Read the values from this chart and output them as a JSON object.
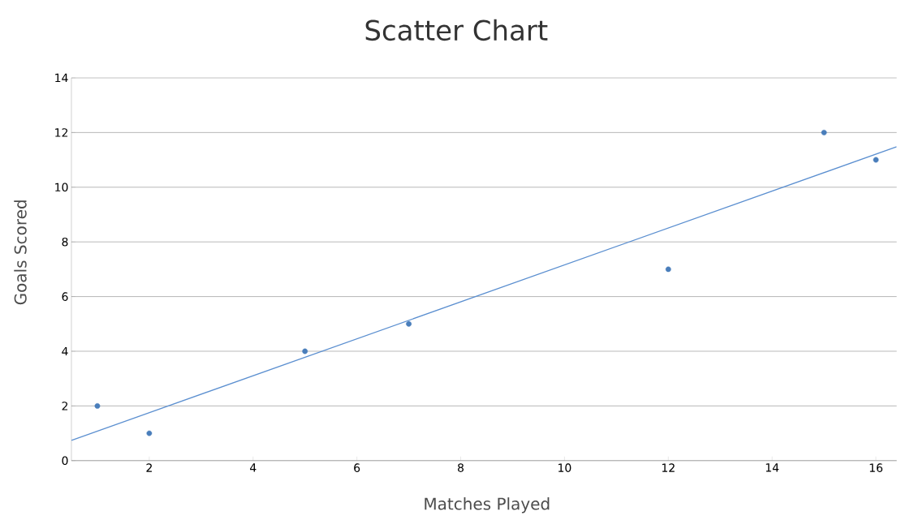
{
  "chart_data": {
    "type": "scatter",
    "title": "Scatter Chart",
    "xlabel": "Matches Played",
    "ylabel": "Goals Scored",
    "xlim": [
      0.5,
      16.4
    ],
    "xticks": [
      2,
      4,
      6,
      8,
      10,
      12,
      14,
      16
    ],
    "ylim": [
      0,
      14
    ],
    "yticks": [
      0,
      2,
      4,
      6,
      8,
      10,
      12,
      14
    ],
    "grid": "y",
    "series": [
      {
        "marker": "circle",
        "color": "#4a7ebb",
        "x": [
          1,
          2,
          5,
          7,
          12,
          15,
          16
        ],
        "values": [
          2,
          1,
          4,
          5,
          7,
          12,
          11
        ]
      },
      {
        "type": "line",
        "color": "#5b8fd0",
        "marker": "none",
        "line_style": "solid",
        "x": [
          0.5,
          16.4
        ],
        "values": [
          0.74,
          11.48
        ]
      }
    ]
  }
}
